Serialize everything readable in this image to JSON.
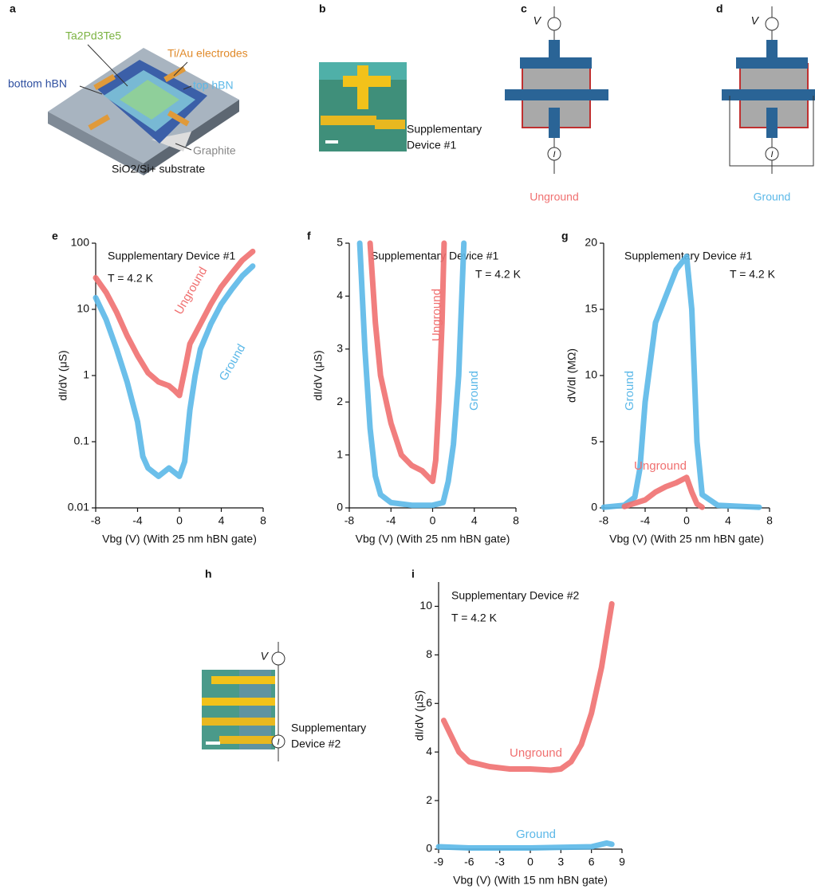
{
  "figure": {
    "panel_labels": [
      "a",
      "b",
      "c",
      "d",
      "e",
      "f",
      "g",
      "h",
      "i"
    ],
    "a": {
      "material": "Ta2Pd3Te5",
      "electrodes": "Ti/Au electrodes",
      "bottom": "bottom hBN",
      "top": "top hBN",
      "graphite": "Graphite",
      "substrate": "SiO2/Si+ substrate"
    },
    "b": {
      "caption": [
        "Supplementary",
        "Device #1"
      ]
    },
    "c": {
      "v": "V",
      "i": "I",
      "caption": "Unground"
    },
    "d": {
      "v": "V",
      "i": "I",
      "caption": "Ground"
    },
    "h": {
      "v": "V",
      "i": "I",
      "caption": [
        "Supplementary",
        "Device #2"
      ]
    }
  },
  "chart_data": [
    {
      "type": "line",
      "yscale": "log",
      "y_label": "dI/dV (μS)",
      "x_label": "Vbg (V) (With 25 nm hBN gate)",
      "annotations": [
        "Supplementary Device #1",
        "T = 4.2 K"
      ],
      "xlim": [
        -8,
        8
      ],
      "xticks": [
        -8,
        -4,
        0,
        4,
        8
      ],
      "ylim": [
        0.01,
        100
      ],
      "yticks": [
        0.01,
        0.1,
        1,
        10,
        100
      ],
      "series": [
        {
          "name": "Unground",
          "color": "#f07070",
          "x": [
            -8,
            -7,
            -6,
            -5,
            -4,
            -3,
            -2,
            -1,
            -0.5,
            0,
            0.5,
            1,
            2,
            3,
            4,
            5,
            6,
            7
          ],
          "values": [
            30,
            18,
            9,
            4,
            2,
            1.1,
            0.8,
            0.7,
            0.6,
            0.5,
            1.2,
            3,
            6,
            12,
            22,
            35,
            55,
            75
          ]
        },
        {
          "name": "Ground",
          "color": "#5bb8e8",
          "x": [
            -8,
            -7,
            -6,
            -5,
            -4,
            -3.5,
            -3,
            -2,
            -1,
            0,
            0.5,
            1,
            1.5,
            2,
            3,
            4,
            5,
            6,
            7
          ],
          "values": [
            15,
            7,
            2.5,
            0.8,
            0.2,
            0.06,
            0.04,
            0.03,
            0.04,
            0.03,
            0.05,
            0.3,
            1,
            2.5,
            6,
            12,
            20,
            32,
            45
          ]
        }
      ]
    },
    {
      "type": "line",
      "y_label": "dI/dV (μS)",
      "x_label": "Vbg (V) (With 25 nm hBN gate)",
      "annotations": [
        "Supplementary Device #1",
        "T = 4.2 K"
      ],
      "xlim": [
        -8,
        8
      ],
      "xticks": [
        -8,
        -4,
        0,
        4,
        8
      ],
      "ylim": [
        0,
        5
      ],
      "yticks": [
        0,
        1,
        2,
        3,
        4,
        5
      ],
      "series": [
        {
          "name": "Unground",
          "color": "#f07070",
          "x": [
            -6,
            -5.5,
            -5,
            -4,
            -3,
            -2,
            -1,
            0,
            0.3,
            0.6,
            0.9,
            1.1
          ],
          "values": [
            5,
            3.5,
            2.5,
            1.6,
            1.0,
            0.8,
            0.7,
            0.5,
            0.9,
            2,
            3.5,
            5
          ]
        },
        {
          "name": "Ground",
          "color": "#5bb8e8",
          "x": [
            -7,
            -6.5,
            -6,
            -5.5,
            -5,
            -4,
            -2,
            0,
            1,
            1.5,
            2,
            2.5,
            3
          ],
          "values": [
            5,
            3,
            1.5,
            0.6,
            0.25,
            0.1,
            0.05,
            0.05,
            0.1,
            0.5,
            1.2,
            2.5,
            5
          ]
        }
      ]
    },
    {
      "type": "line",
      "y_label": "dV/dI (MΩ)",
      "x_label": "Vbg (V) (With 25 nm hBN gate)",
      "annotations": [
        "Supplementary Device #1",
        "T = 4.2 K"
      ],
      "xlim": [
        -8,
        8
      ],
      "xticks": [
        -8,
        -4,
        0,
        4,
        8
      ],
      "ylim": [
        0,
        20
      ],
      "yticks": [
        0,
        5,
        10,
        15,
        20
      ],
      "series": [
        {
          "name": "Ground",
          "color": "#5bb8e8",
          "x": [
            -8,
            -6,
            -5,
            -4.5,
            -4,
            -3.5,
            -3,
            -2,
            -1,
            0,
            0.5,
            1,
            1.5,
            3,
            7
          ],
          "values": [
            0.05,
            0.2,
            0.8,
            3,
            8,
            11,
            14,
            16,
            18,
            19,
            15,
            5,
            1,
            0.2,
            0.05
          ]
        },
        {
          "name": "Unground",
          "color": "#f07070",
          "x": [
            -6,
            -4,
            -3,
            -2,
            -1,
            0,
            0.5,
            1,
            1.5
          ],
          "values": [
            0.1,
            0.6,
            1.2,
            1.6,
            1.9,
            2.3,
            1.2,
            0.3,
            0.05
          ]
        }
      ]
    },
    {
      "type": "line",
      "y_label": "dI/dV (μS)",
      "x_label": "Vbg (V) (With 15 nm hBN gate)",
      "annotations": [
        "Supplementary Device #2",
        "T = 4.2 K"
      ],
      "xlim": [
        -9,
        9
      ],
      "xticks": [
        -9,
        -6,
        -3,
        0,
        3,
        6,
        9
      ],
      "ylim": [
        0,
        11
      ],
      "yticks": [
        0,
        2,
        4,
        6,
        8,
        10
      ],
      "series": [
        {
          "name": "Unground",
          "color": "#f07070",
          "x": [
            -8.5,
            -7,
            -6,
            -4,
            -2,
            0,
            2,
            3,
            4,
            5,
            6,
            7,
            8
          ],
          "values": [
            5.3,
            4,
            3.6,
            3.4,
            3.3,
            3.3,
            3.25,
            3.3,
            3.6,
            4.3,
            5.6,
            7.5,
            10.1
          ]
        },
        {
          "name": "Ground",
          "color": "#5bb8e8",
          "x": [
            -9,
            -6,
            0,
            6,
            7.5,
            8
          ],
          "values": [
            0.1,
            0.05,
            0.05,
            0.1,
            0.25,
            0.2
          ]
        }
      ]
    }
  ]
}
